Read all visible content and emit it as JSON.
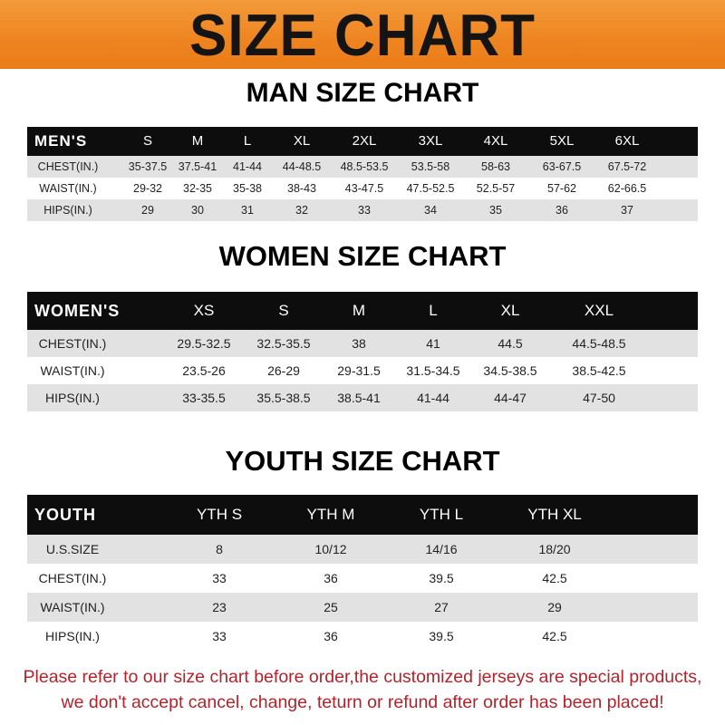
{
  "banner": {
    "title": "SIZE CHART",
    "color": "#ee8420"
  },
  "men": {
    "title": "MAN SIZE CHART",
    "headers": [
      "MEN'S",
      "S",
      "M",
      "L",
      "XL",
      "2XL",
      "3XL",
      "4XL",
      "5XL",
      "6XL"
    ],
    "rows": [
      [
        "CHEST(IN.)",
        "35-37.5",
        "37.5-41",
        "41-44",
        "44-48.5",
        "48.5-53.5",
        "53.5-58",
        "58-63",
        "63-67.5",
        "67.5-72"
      ],
      [
        "WAIST(IN.)",
        "29-32",
        "32-35",
        "35-38",
        "38-43",
        "43-47.5",
        "47.5-52.5",
        "52.5-57",
        "57-62",
        "62-66.5"
      ],
      [
        "HIPS(IN.)",
        "29",
        "30",
        "31",
        "32",
        "33",
        "34",
        "35",
        "36",
        "37"
      ]
    ]
  },
  "women": {
    "title": "WOMEN SIZE CHART",
    "headers": [
      "WOMEN'S",
      "XS",
      "S",
      "M",
      "L",
      "XL",
      "XXL"
    ],
    "rows": [
      [
        "CHEST(IN.)",
        "29.5-32.5",
        "32.5-35.5",
        "38",
        "41",
        "44.5",
        "44.5-48.5"
      ],
      [
        "WAIST(IN.)",
        "23.5-26",
        "26-29",
        "29-31.5",
        "31.5-34.5",
        "34.5-38.5",
        "38.5-42.5"
      ],
      [
        "HIPS(IN.)",
        "33-35.5",
        "35.5-38.5",
        "38.5-41",
        "41-44",
        "44-47",
        "47-50"
      ]
    ]
  },
  "youth": {
    "title": "YOUTH SIZE CHART",
    "headers": [
      "YOUTH",
      "YTH S",
      "YTH M",
      "YTH L",
      "YTH XL"
    ],
    "rows": [
      [
        "U.S.SIZE",
        "8",
        "10/12",
        "14/16",
        "18/20"
      ],
      [
        "CHEST(IN.)",
        "33",
        "36",
        "39.5",
        "42.5"
      ],
      [
        "WAIST(IN.)",
        "23",
        "25",
        "27",
        "29"
      ],
      [
        "HIPS(IN.)",
        "33",
        "36",
        "39.5",
        "42.5"
      ]
    ]
  },
  "note": {
    "line1": "Please refer to our size chart before order,the customized jerseys are special products,",
    "line2": "we don't accept cancel, change, teturn or refund after order has been placed!",
    "color": "#b3232b"
  }
}
